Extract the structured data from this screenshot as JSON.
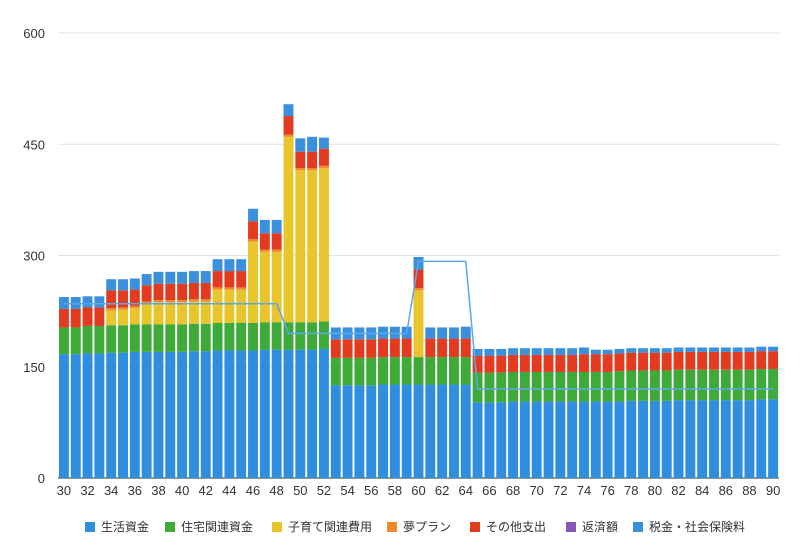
{
  "chart_data": {
    "type": "bar",
    "stacked": true,
    "ylim": [
      0,
      600
    ],
    "yticks": [
      0,
      150,
      300,
      450,
      600
    ],
    "grid": true,
    "legend_position": "bottom",
    "x": [
      30,
      31,
      32,
      33,
      34,
      35,
      36,
      37,
      38,
      39,
      40,
      41,
      42,
      43,
      44,
      45,
      46,
      47,
      48,
      49,
      50,
      51,
      52,
      53,
      54,
      55,
      56,
      57,
      58,
      59,
      60,
      61,
      62,
      63,
      64,
      65,
      66,
      67,
      68,
      69,
      70,
      71,
      72,
      73,
      74,
      75,
      76,
      77,
      78,
      79,
      80,
      81,
      82,
      83,
      84,
      85,
      86,
      87,
      88,
      89,
      90
    ],
    "xtick_labels": [
      "30",
      "32",
      "34",
      "36",
      "38",
      "40",
      "42",
      "44",
      "46",
      "48",
      "50",
      "52",
      "54",
      "56",
      "58",
      "60",
      "62",
      "64",
      "66",
      "68",
      "70",
      "72",
      "74",
      "76",
      "78",
      "80",
      "82",
      "84",
      "86",
      "88",
      "90"
    ],
    "series": [
      {
        "name": "生活資金",
        "color": "#2f8ee0",
        "values": [
          167,
          167,
          168,
          168,
          169,
          169,
          170,
          170,
          170,
          170,
          170,
          171,
          171,
          172,
          172,
          172,
          172,
          173,
          173,
          173,
          173,
          173,
          174,
          125,
          125,
          125,
          125,
          126,
          126,
          126,
          126,
          126,
          126,
          126,
          126,
          102,
          102,
          102,
          103,
          103,
          103,
          103,
          103,
          103,
          103,
          103,
          103,
          103,
          104,
          104,
          104,
          104,
          105,
          105,
          105,
          105,
          105,
          105,
          105,
          106,
          106
        ]
      },
      {
        "name": "住宅関連資金",
        "color": "#3daa3a",
        "values": [
          36,
          36,
          37,
          37,
          37,
          37,
          37,
          37,
          37,
          37,
          37,
          37,
          37,
          37,
          37,
          37,
          37,
          37,
          37,
          37,
          37,
          37,
          37,
          37,
          37,
          37,
          37,
          37,
          37,
          37,
          37,
          37,
          37,
          37,
          37,
          40,
          40,
          40,
          40,
          40,
          40,
          40,
          40,
          40,
          40,
          40,
          40,
          41,
          41,
          41,
          41,
          41,
          41,
          41,
          41,
          41,
          41,
          41,
          41,
          41,
          41
        ]
      },
      {
        "name": "子育て関連費用",
        "color": "#e8c52c",
        "values": [
          0,
          0,
          0,
          0,
          20,
          21,
          22,
          28,
          30,
          30,
          30,
          30,
          30,
          45,
          45,
          45,
          110,
          95,
          95,
          250,
          205,
          205,
          207,
          0,
          0,
          0,
          0,
          0,
          0,
          0,
          90,
          0,
          0,
          0,
          0,
          0,
          0,
          0,
          0,
          0,
          0,
          0,
          0,
          0,
          0,
          0,
          0,
          0,
          0,
          0,
          0,
          0,
          0,
          0,
          0,
          0,
          0,
          0,
          0,
          0,
          0
        ]
      },
      {
        "name": "夢プラン",
        "color": "#ef8a2a",
        "values": [
          0,
          0,
          0,
          0,
          3,
          3,
          3,
          3,
          3,
          3,
          3,
          3,
          3,
          3,
          3,
          3,
          3,
          3,
          3,
          3,
          3,
          3,
          3,
          0,
          0,
          0,
          0,
          0,
          0,
          0,
          3,
          0,
          0,
          0,
          0,
          0,
          0,
          0,
          0,
          0,
          0,
          0,
          0,
          0,
          0,
          0,
          0,
          0,
          0,
          0,
          0,
          0,
          0,
          0,
          0,
          0,
          0,
          0,
          0,
          0,
          0
        ]
      },
      {
        "name": "その他支出",
        "color": "#e33b20",
        "values": [
          25,
          25,
          25,
          25,
          24,
          23,
          22,
          22,
          22,
          22,
          22,
          22,
          22,
          22,
          22,
          22,
          24,
          22,
          22,
          25,
          22,
          22,
          23,
          25,
          25,
          25,
          25,
          25,
          25,
          25,
          25,
          25,
          25,
          25,
          25,
          23,
          23,
          23,
          23,
          23,
          23,
          23,
          23,
          23,
          24,
          24,
          24,
          24,
          24,
          24,
          24,
          24,
          24,
          24,
          24,
          24,
          24,
          24,
          24,
          24,
          24
        ]
      },
      {
        "name": "返済額",
        "color": "#8a55b6",
        "values": [
          0,
          0,
          0,
          0,
          0,
          0,
          0,
          0,
          0,
          0,
          0,
          0,
          0,
          0,
          0,
          0,
          0,
          0,
          0,
          0,
          0,
          0,
          0,
          0,
          0,
          0,
          0,
          0,
          0,
          0,
          0,
          0,
          0,
          0,
          0,
          0,
          0,
          0,
          0,
          0,
          0,
          0,
          0,
          0,
          0,
          0,
          0,
          0,
          0,
          0,
          0,
          0,
          0,
          0,
          0,
          0,
          0,
          0,
          0,
          0,
          0
        ]
      },
      {
        "name": "税金・社会保険料",
        "color": "#3a90dd",
        "values": [
          16,
          16,
          15,
          15,
          15,
          15,
          15,
          15,
          16,
          16,
          16,
          16,
          16,
          16,
          16,
          16,
          17,
          18,
          18,
          16,
          18,
          20,
          15,
          16,
          16,
          16,
          16,
          16,
          16,
          16,
          17,
          15,
          15,
          15,
          16,
          9,
          9,
          9,
          9,
          9,
          9,
          9,
          9,
          9,
          9,
          6,
          6,
          6,
          6,
          6,
          6,
          6,
          6,
          6,
          6,
          6,
          6,
          6,
          6,
          6,
          6
        ]
      }
    ],
    "line": {
      "color": "#5aa9e6",
      "values": [
        235,
        235,
        235,
        235,
        235,
        235,
        235,
        235,
        235,
        235,
        235,
        235,
        235,
        235,
        235,
        235,
        235,
        235,
        235,
        195,
        195,
        195,
        195,
        195,
        195,
        195,
        195,
        195,
        195,
        195,
        292,
        292,
        292,
        292,
        292,
        120,
        120,
        120,
        120,
        120,
        120,
        120,
        120,
        120,
        120,
        120,
        120,
        120,
        120,
        120,
        120,
        120,
        120,
        120,
        120,
        120,
        120,
        120,
        120,
        120,
        120
      ]
    }
  }
}
